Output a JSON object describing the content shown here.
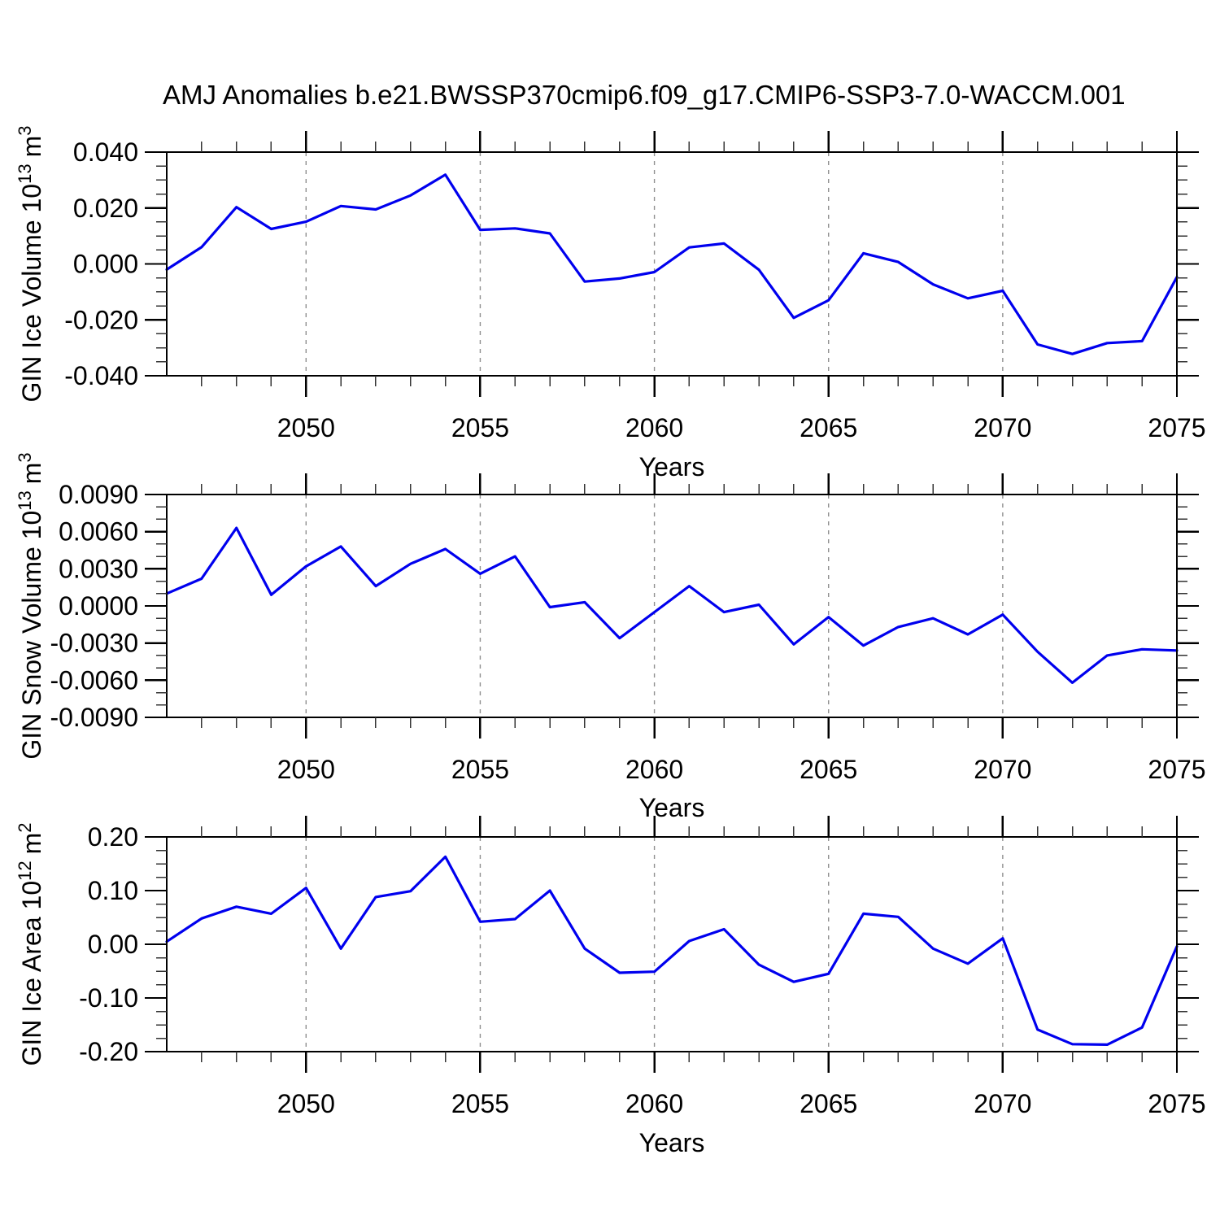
{
  "figure": {
    "title": "AMJ Anomalies b.e21.BWSSP370cmip6.f09_g17.CMIP6-SSP3-7.0-WACCM.001",
    "line_color": "#0000ee",
    "grid_color": "#8f8f8f",
    "axis_color": "#000000",
    "minor_tick_color": "#333333"
  },
  "chart_data": [
    {
      "type": "line",
      "panel": "gin-ice-volume",
      "title": "",
      "xlabel": "Years",
      "ylabel_plain": "GIN Ice Volume 10^13 m^3",
      "ylabel": {
        "base": "GIN Ice Volume 10",
        "exp": "13",
        "unit": "m",
        "unit_exp": "3"
      },
      "xlim": [
        2046,
        2075
      ],
      "ylim": [
        -0.04,
        0.04
      ],
      "xtick_values": [
        2050,
        2055,
        2060,
        2065,
        2070,
        2075
      ],
      "xtick_labels": [
        "2050",
        "2055",
        "2060",
        "2065",
        "2070",
        "2075"
      ],
      "xminor_step": 1,
      "grid_x": [
        2050,
        2055,
        2060,
        2065,
        2070
      ],
      "ytick_values": [
        0.04,
        0.02,
        0.0,
        -0.02,
        -0.04
      ],
      "ytick_labels": [
        "0.040",
        "0.020",
        "0.000",
        "-0.020",
        "-0.040"
      ],
      "yminor_step": 0.005,
      "x": [
        2046,
        2047,
        2048,
        2049,
        2050,
        2051,
        2052,
        2053,
        2054,
        2055,
        2056,
        2057,
        2058,
        2059,
        2060,
        2061,
        2062,
        2063,
        2064,
        2065,
        2066,
        2067,
        2068,
        2069,
        2070,
        2071,
        2072,
        2073,
        2074,
        2075
      ],
      "values": [
        -0.002,
        0.006,
        0.0203,
        0.0125,
        0.0151,
        0.0207,
        0.0195,
        0.0245,
        0.0319,
        0.0122,
        0.0127,
        0.0109,
        -0.0063,
        -0.0052,
        -0.0029,
        0.0059,
        0.0073,
        -0.0021,
        -0.0193,
        -0.013,
        0.0038,
        0.0007,
        -0.0073,
        -0.0123,
        -0.0096,
        -0.0288,
        -0.0322,
        -0.0283,
        -0.0276,
        -0.0047
      ]
    },
    {
      "type": "line",
      "panel": "gin-snow-volume",
      "title": "",
      "xlabel": "Years",
      "ylabel_plain": "GIN Snow Volume 10^13 m^3",
      "ylabel": {
        "base": "GIN Snow Volume 10",
        "exp": "13",
        "unit": "m",
        "unit_exp": "3"
      },
      "xlim": [
        2046,
        2075
      ],
      "ylim": [
        -0.009,
        0.009
      ],
      "xtick_values": [
        2050,
        2055,
        2060,
        2065,
        2070,
        2075
      ],
      "xtick_labels": [
        "2050",
        "2055",
        "2060",
        "2065",
        "2070",
        "2075"
      ],
      "xminor_step": 1,
      "grid_x": [
        2050,
        2055,
        2060,
        2065,
        2070
      ],
      "ytick_values": [
        0.009,
        0.006,
        0.003,
        0.0,
        -0.003,
        -0.006,
        -0.009
      ],
      "ytick_labels": [
        "0.0090",
        "0.0060",
        "0.0030",
        "0.0000",
        "-0.0030",
        "-0.0060",
        "-0.0090"
      ],
      "yminor_step": 0.001,
      "x": [
        2046,
        2047,
        2048,
        2049,
        2050,
        2051,
        2052,
        2053,
        2054,
        2055,
        2056,
        2057,
        2058,
        2059,
        2060,
        2061,
        2062,
        2063,
        2064,
        2065,
        2066,
        2067,
        2068,
        2069,
        2070,
        2071,
        2072,
        2073,
        2074,
        2075
      ],
      "values": [
        0.001,
        0.0022,
        0.0063,
        0.0009,
        0.0032,
        0.0048,
        0.0016,
        0.0034,
        0.0046,
        0.0026,
        0.004,
        -0.0001,
        0.0003,
        -0.0026,
        -0.0005,
        0.0016,
        -0.0005,
        0.0001,
        -0.0031,
        -0.0009,
        -0.0032,
        -0.0017,
        -0.001,
        -0.0023,
        -0.0007,
        -0.0037,
        -0.0062,
        -0.004,
        -0.0035,
        -0.0036
      ]
    },
    {
      "type": "line",
      "panel": "gin-ice-area",
      "title": "",
      "xlabel": "Years",
      "ylabel_plain": "GIN Ice Area 10^12 m^2",
      "ylabel": {
        "base": "GIN Ice Area 10",
        "exp": "12",
        "unit": "m",
        "unit_exp": "2"
      },
      "xlim": [
        2046,
        2075
      ],
      "ylim": [
        -0.2,
        0.2
      ],
      "xtick_values": [
        2050,
        2055,
        2060,
        2065,
        2070,
        2075
      ],
      "xtick_labels": [
        "2050",
        "2055",
        "2060",
        "2065",
        "2070",
        "2075"
      ],
      "xminor_step": 1,
      "grid_x": [
        2050,
        2055,
        2060,
        2065,
        2070
      ],
      "ytick_values": [
        0.2,
        0.1,
        0.0,
        -0.1,
        -0.2
      ],
      "ytick_labels": [
        "0.20",
        "0.10",
        "0.00",
        "-0.10",
        "-0.20"
      ],
      "yminor_step": 0.025,
      "x": [
        2046,
        2047,
        2048,
        2049,
        2050,
        2051,
        2052,
        2053,
        2054,
        2055,
        2056,
        2057,
        2058,
        2059,
        2060,
        2061,
        2062,
        2063,
        2064,
        2065,
        2066,
        2067,
        2068,
        2069,
        2070,
        2071,
        2072,
        2073,
        2074,
        2075
      ],
      "values": [
        0.005,
        0.048,
        0.07,
        0.057,
        0.105,
        -0.008,
        0.088,
        0.099,
        0.163,
        0.042,
        0.047,
        0.1,
        -0.008,
        -0.053,
        -0.051,
        0.006,
        0.028,
        -0.038,
        -0.07,
        -0.055,
        0.057,
        0.051,
        -0.008,
        -0.036,
        0.011,
        -0.159,
        -0.186,
        -0.187,
        -0.155,
        -0.004
      ]
    }
  ]
}
